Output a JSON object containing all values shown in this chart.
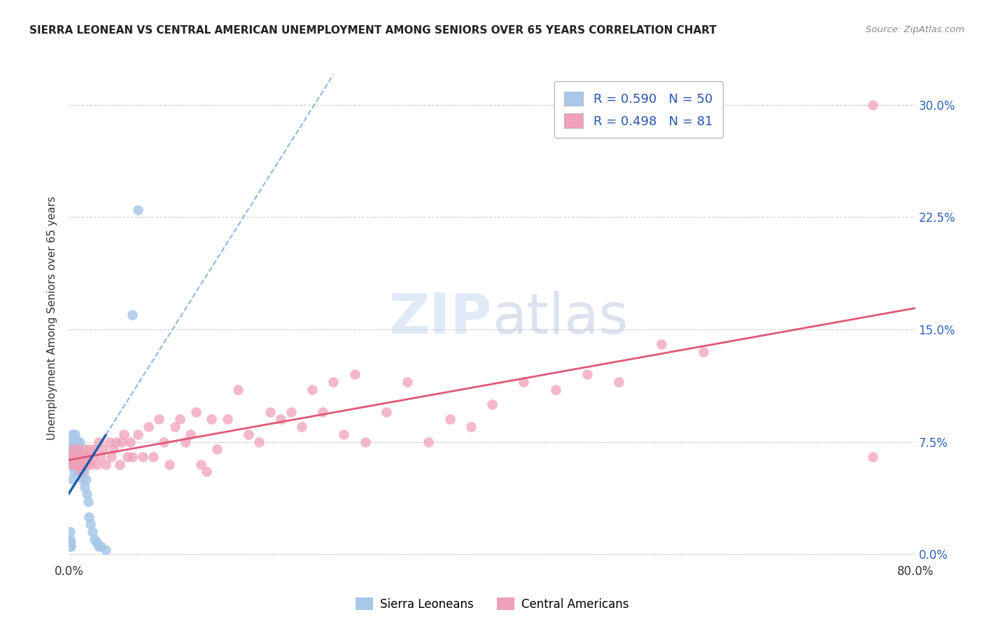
{
  "title": "SIERRA LEONEAN VS CENTRAL AMERICAN UNEMPLOYMENT AMONG SENIORS OVER 65 YEARS CORRELATION CHART",
  "source": "Source: ZipAtlas.com",
  "ylabel": "Unemployment Among Seniors over 65 years",
  "r_sl": 0.59,
  "n_sl": 50,
  "r_ca": 0.498,
  "n_ca": 81,
  "sl_color": "#a8c8e8",
  "ca_color": "#f0a0b8",
  "sl_line_color": "#1a5cb0",
  "ca_line_color": "#e05878",
  "sl_dash_color": "#90b8e0",
  "xlim": [
    0.0,
    0.8
  ],
  "ylim": [
    -0.005,
    0.32
  ],
  "yticks": [
    0.0,
    0.075,
    0.15,
    0.225,
    0.3
  ],
  "ytick_labels": [
    "0.0%",
    "7.5%",
    "15.0%",
    "22.5%",
    "30.0%"
  ],
  "legend_bottom": [
    "Sierra Leoneans",
    "Central Americans"
  ],
  "sl_x": [
    0.001,
    0.001,
    0.001,
    0.002,
    0.002,
    0.002,
    0.002,
    0.003,
    0.003,
    0.003,
    0.003,
    0.003,
    0.004,
    0.004,
    0.004,
    0.005,
    0.005,
    0.005,
    0.006,
    0.006,
    0.006,
    0.007,
    0.007,
    0.008,
    0.008,
    0.008,
    0.009,
    0.009,
    0.01,
    0.01,
    0.01,
    0.011,
    0.012,
    0.012,
    0.013,
    0.014,
    0.015,
    0.016,
    0.017,
    0.018,
    0.019,
    0.02,
    0.022,
    0.024,
    0.026,
    0.028,
    0.03,
    0.035,
    0.06,
    0.065
  ],
  "sl_y": [
    0.005,
    0.01,
    0.015,
    0.005,
    0.008,
    0.06,
    0.07,
    0.05,
    0.065,
    0.07,
    0.075,
    0.08,
    0.06,
    0.065,
    0.07,
    0.055,
    0.068,
    0.075,
    0.06,
    0.07,
    0.08,
    0.065,
    0.075,
    0.055,
    0.065,
    0.075,
    0.06,
    0.07,
    0.055,
    0.065,
    0.075,
    0.06,
    0.055,
    0.065,
    0.05,
    0.055,
    0.045,
    0.05,
    0.04,
    0.035,
    0.025,
    0.02,
    0.015,
    0.01,
    0.008,
    0.005,
    0.005,
    0.003,
    0.16,
    0.23
  ],
  "ca_x": [
    0.001,
    0.002,
    0.003,
    0.004,
    0.005,
    0.006,
    0.007,
    0.008,
    0.009,
    0.01,
    0.011,
    0.012,
    0.013,
    0.014,
    0.015,
    0.016,
    0.017,
    0.018,
    0.019,
    0.02,
    0.022,
    0.024,
    0.026,
    0.028,
    0.03,
    0.032,
    0.035,
    0.038,
    0.04,
    0.042,
    0.045,
    0.048,
    0.05,
    0.052,
    0.055,
    0.058,
    0.06,
    0.065,
    0.07,
    0.075,
    0.08,
    0.085,
    0.09,
    0.095,
    0.1,
    0.105,
    0.11,
    0.115,
    0.12,
    0.125,
    0.13,
    0.135,
    0.14,
    0.15,
    0.16,
    0.17,
    0.18,
    0.19,
    0.2,
    0.21,
    0.22,
    0.23,
    0.24,
    0.25,
    0.26,
    0.27,
    0.28,
    0.3,
    0.32,
    0.34,
    0.36,
    0.38,
    0.4,
    0.43,
    0.46,
    0.49,
    0.52,
    0.56,
    0.6,
    0.76,
    0.76
  ],
  "ca_y": [
    0.065,
    0.06,
    0.065,
    0.07,
    0.06,
    0.065,
    0.06,
    0.07,
    0.065,
    0.06,
    0.055,
    0.065,
    0.06,
    0.065,
    0.07,
    0.065,
    0.06,
    0.065,
    0.07,
    0.06,
    0.065,
    0.07,
    0.06,
    0.075,
    0.065,
    0.07,
    0.06,
    0.075,
    0.065,
    0.07,
    0.075,
    0.06,
    0.075,
    0.08,
    0.065,
    0.075,
    0.065,
    0.08,
    0.065,
    0.085,
    0.065,
    0.09,
    0.075,
    0.06,
    0.085,
    0.09,
    0.075,
    0.08,
    0.095,
    0.06,
    0.055,
    0.09,
    0.07,
    0.09,
    0.11,
    0.08,
    0.075,
    0.095,
    0.09,
    0.095,
    0.085,
    0.11,
    0.095,
    0.115,
    0.08,
    0.12,
    0.075,
    0.095,
    0.115,
    0.075,
    0.09,
    0.085,
    0.1,
    0.115,
    0.11,
    0.12,
    0.115,
    0.14,
    0.135,
    0.065,
    0.3
  ]
}
